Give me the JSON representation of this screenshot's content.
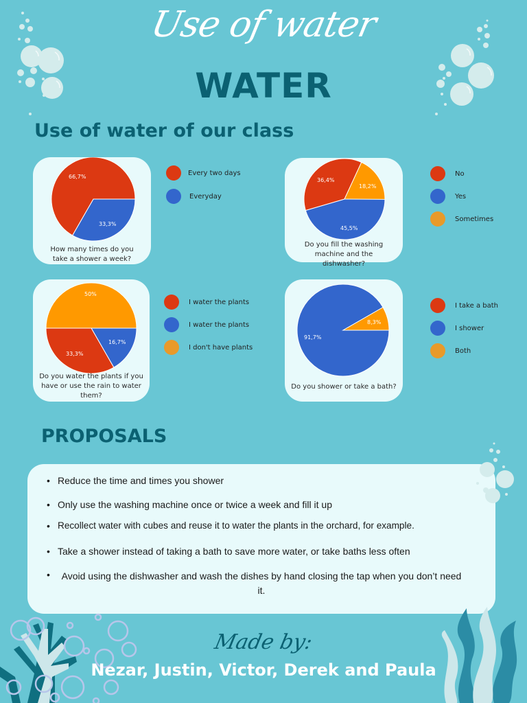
{
  "header": {
    "script_title": "Use of water",
    "big_title": "WATER",
    "section_title": "Use of water of our class"
  },
  "colors": {
    "background": "#68c6d4",
    "dark_teal": "#0b6172",
    "card": "#e8fafb",
    "red": "#dc3912",
    "blue": "#3366cc",
    "orange": "#ff9900",
    "legend_orange": "#e89a2a"
  },
  "chart_data": [
    {
      "type": "pie",
      "title": "How many times do you take a shower a week?",
      "categories": [
        "Every two days",
        "Everyday"
      ],
      "values": [
        66.7,
        33.3
      ],
      "labels": [
        "66,7%",
        "33,3%"
      ],
      "colors": [
        "#dc3912",
        "#3366cc"
      ],
      "legend_position": "right"
    },
    {
      "type": "pie",
      "title": "Do you fill the washing machine and the dishwasher?",
      "categories": [
        "No",
        "Yes",
        "Sometimes"
      ],
      "values": [
        36.4,
        45.5,
        18.2
      ],
      "labels": [
        "36,4%",
        "45,5%",
        "18,2%"
      ],
      "colors": [
        "#dc3912",
        "#3366cc",
        "#ff9900"
      ],
      "legend_position": "right"
    },
    {
      "type": "pie",
      "title": "Do you water the plants if you have or use the rain to water them?",
      "categories": [
        "I water the plants",
        "I water the plants",
        "I don't have plants"
      ],
      "values": [
        33.3,
        16.7,
        50
      ],
      "labels": [
        "33,3%",
        "16,7%",
        "50%"
      ],
      "colors": [
        "#dc3912",
        "#3366cc",
        "#ff9900"
      ],
      "legend_position": "right"
    },
    {
      "type": "pie",
      "title": "Do you shower or take a bath?",
      "categories": [
        "I take a bath",
        "I shower",
        "Both"
      ],
      "values": [
        0,
        91.7,
        8.3
      ],
      "labels": [
        "",
        "91,7%",
        "8,3%"
      ],
      "colors": [
        "#dc3912",
        "#3366cc",
        "#ff9900"
      ],
      "legend_position": "right"
    }
  ],
  "charts": {
    "c1": {
      "caption": "How many times do you take a shower a week?",
      "pct": [
        "66,7%",
        "33,3%"
      ],
      "legend": [
        "Every two days",
        "Everyday"
      ]
    },
    "c2": {
      "caption": "Do you fill the washing machine and the dishwasher?",
      "pct": [
        "36,4%",
        "45,5%",
        "18,2%"
      ],
      "legend": [
        "No",
        "Yes",
        "Sometimes"
      ]
    },
    "c3": {
      "caption": "Do you water the plants if you have or use the rain to water them?",
      "pct": [
        "33,3%",
        "16,7%",
        "50%"
      ],
      "legend": [
        "I water the plants",
        "I water the plants",
        "I don't have plants"
      ]
    },
    "c4": {
      "caption": "Do you shower or take a bath?",
      "pct": [
        "91,7%",
        "8,3%"
      ],
      "legend": [
        "I take a bath",
        "I shower",
        "Both"
      ]
    }
  },
  "proposals": {
    "title": "PROPOSALS",
    "bullet": "•",
    "items": [
      "Reduce the time and times you shower",
      "Only use the washing machine once or twice a week and fill it up",
      "Recollect water with cubes and reuse it to water the plants in the orchard, for example.",
      "Take a shower instead of taking a bath to save more water, or take baths less often",
      "Avoid using the dishwasher and wash the dishes by hand closing the tap when you don’t need it."
    ]
  },
  "footer": {
    "made_by": "Made by:",
    "authors": "Nezar, Justin, Victor, Derek and Paula"
  },
  "decorations": {
    "icons": [
      "bubbles-icon",
      "coral-icon",
      "seaweed-icon"
    ]
  }
}
